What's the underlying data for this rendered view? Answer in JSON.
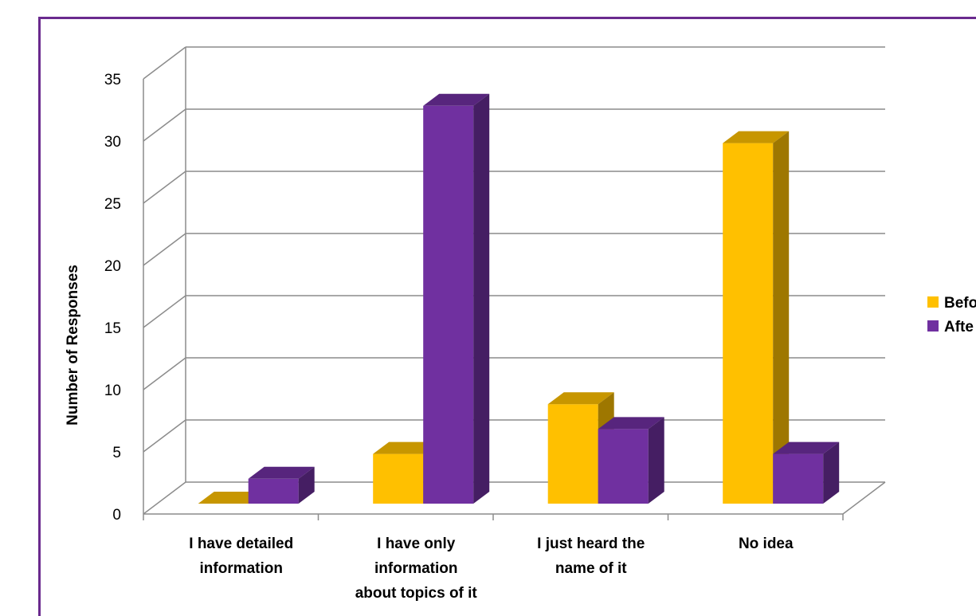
{
  "chart_data": {
    "type": "bar",
    "three_d": true,
    "categories": [
      [
        "I have detailed",
        "information"
      ],
      [
        "I have only",
        "information",
        "about topics of it"
      ],
      [
        "I just heard the",
        "name of it"
      ],
      [
        "No idea"
      ]
    ],
    "series": [
      {
        "name": "Befo",
        "values": [
          0,
          4,
          8,
          29
        ],
        "color": "#ffc000"
      },
      {
        "name": "Afte",
        "values": [
          2,
          32,
          6,
          4
        ],
        "color": "#7030a0"
      }
    ],
    "ylabel": "Number of Responses",
    "xlabel": "",
    "title": "",
    "ylim": [
      0,
      35
    ],
    "yticks": [
      0,
      5,
      10,
      15,
      20,
      25,
      30,
      35
    ],
    "grid": true,
    "legend_position": "right"
  },
  "frame_color": "#6a2a8e",
  "grid_color": "#8c8c8c"
}
